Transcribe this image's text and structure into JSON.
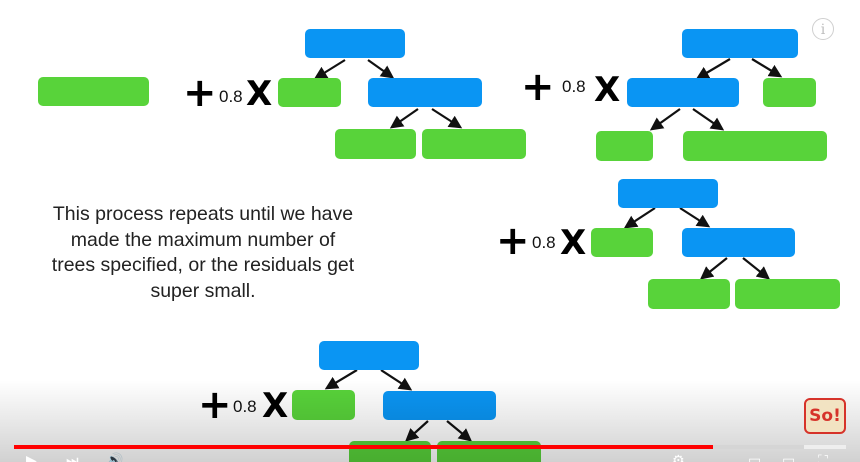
{
  "caption": {
    "lines": [
      "This process repeats until we have",
      "made the maximum number of",
      "trees specified, or the residuals get",
      "super small."
    ]
  },
  "formula": {
    "plus": "+",
    "learning_rate": "0.8",
    "times": "X"
  },
  "logo": {
    "text": "So!"
  },
  "video_player": {
    "progress": 0.84,
    "buffered": 0.95
  },
  "colors": {
    "tree_node": "#0a95f3",
    "leaf": "#58d33a",
    "progress": "#ff0000"
  }
}
